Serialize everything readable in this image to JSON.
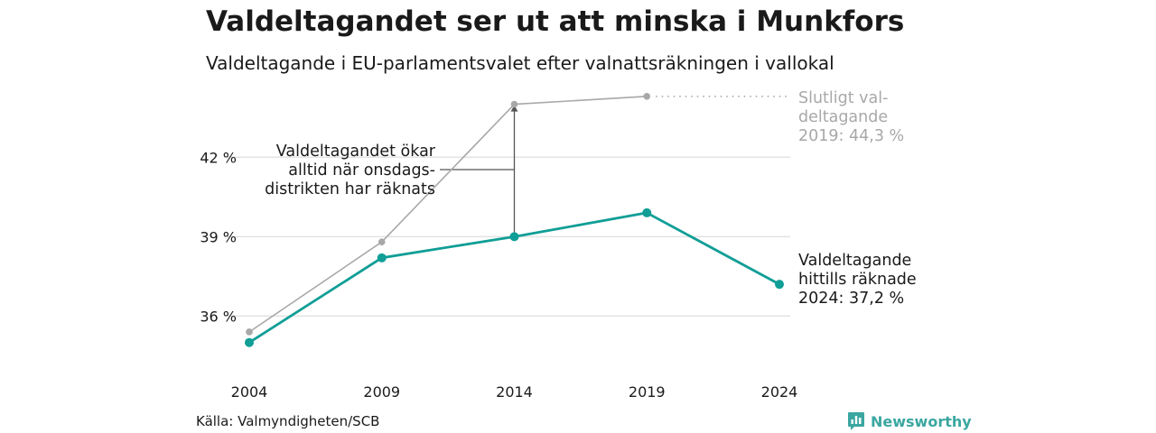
{
  "title": "Valdeltagandet ser ut att minska i Munkfors",
  "subtitle": "Valdeltagande i EU-parlamentsvalet efter valnattsräkningen i vallokal",
  "source": "Källa: Valmyndigheten/SCB",
  "brand": "Newsworthy",
  "colors": {
    "final": "#a8a8a8",
    "current": "#109e96",
    "text": "#1a1a1a",
    "brand": "#3aa7a0"
  },
  "annotations": {
    "final": [
      "Slutligt val-",
      "deltagande",
      "2019: 44,3 %"
    ],
    "current": [
      "Valdeltagande",
      "hittills räknade",
      "2024: 37,2 %"
    ],
    "note": [
      "Valdeltagandet ökar",
      "alltid när onsdags-",
      "distrikten har räknats"
    ]
  },
  "chart_data": {
    "type": "line",
    "categories": [
      "2004",
      "2009",
      "2014",
      "2019",
      "2024"
    ],
    "y_ticks": [
      36,
      39,
      42
    ],
    "y_tick_labels": [
      "36 %",
      "39 %",
      "42 %"
    ],
    "ylim": [
      33.9,
      44.6
    ],
    "grid": true,
    "series": [
      {
        "key": "final",
        "values": [
          35.4,
          38.8,
          44.0,
          44.3,
          null
        ]
      },
      {
        "key": "current",
        "values": [
          35.0,
          38.2,
          39.0,
          39.9,
          37.2
        ]
      }
    ]
  }
}
